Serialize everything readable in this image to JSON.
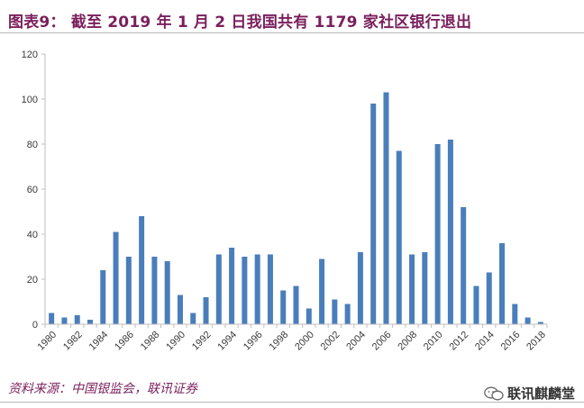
{
  "title": "图表9：  截至 2019 年 1 月 2 日我国共有 1179 家社区银行退出",
  "source": "资料来源：中国银监会，联讯证券",
  "watermark": "联讯麒麟堂",
  "colors": {
    "bar": "#4a7ebb",
    "title": "#7a1f5c",
    "axis": "#bfbfbf"
  },
  "chart_data": {
    "type": "bar",
    "title": "",
    "xlabel": "",
    "ylabel": "",
    "ylim": [
      0,
      120
    ],
    "yticks": [
      0,
      20,
      40,
      60,
      80,
      100,
      120
    ],
    "grid": false,
    "categories": [
      "1980",
      "1981",
      "1982",
      "1983",
      "1984",
      "1985",
      "1986",
      "1987",
      "1988",
      "1989",
      "1990",
      "1991",
      "1992",
      "1993",
      "1994",
      "1995",
      "1996",
      "1997",
      "1998",
      "1999",
      "2000",
      "2001",
      "2002",
      "2003",
      "2004",
      "2005",
      "2006",
      "2007",
      "2008",
      "2009",
      "2010",
      "2011",
      "2012",
      "2013",
      "2014",
      "2015",
      "2016",
      "2017",
      "2018"
    ],
    "values": [
      5,
      3,
      4,
      2,
      24,
      41,
      30,
      48,
      30,
      28,
      13,
      5,
      12,
      31,
      34,
      30,
      31,
      31,
      15,
      17,
      7,
      29,
      11,
      9,
      32,
      98,
      103,
      77,
      31,
      32,
      80,
      82,
      52,
      17,
      23,
      36,
      9,
      3,
      1
    ],
    "xtick_labels": [
      "1980",
      "1982",
      "1984",
      "1986",
      "1988",
      "1990",
      "1992",
      "1994",
      "1996",
      "1998",
      "2000",
      "2002",
      "2004",
      "2006",
      "2008",
      "2010",
      "2012",
      "2014",
      "2016",
      "2018"
    ]
  }
}
